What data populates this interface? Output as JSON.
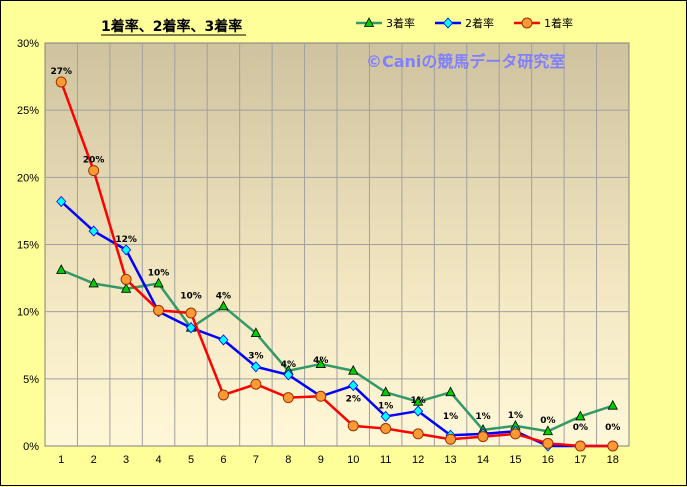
{
  "chart_data": {
    "type": "line",
    "title": "1着率、2着率、3着率",
    "watermark": "©Caniの競馬データ研究室",
    "x": [
      1,
      2,
      3,
      4,
      5,
      6,
      7,
      8,
      9,
      10,
      11,
      12,
      13,
      14,
      15,
      16,
      17,
      18
    ],
    "ylim": [
      0,
      30
    ],
    "yticks": [
      "0%",
      "5%",
      "10%",
      "15%",
      "20%",
      "25%",
      "30%"
    ],
    "legend_position": "top-right",
    "series": [
      {
        "name": "3着率",
        "color": "#339966",
        "marker": "triangle",
        "marker_fill": "#00cc00",
        "values": [
          13.1,
          12.1,
          11.7,
          12.1,
          8.8,
          10.4,
          8.4,
          5.6,
          6.1,
          5.6,
          4.0,
          3.3,
          4.0,
          1.2,
          1.5,
          1.1,
          2.2,
          3.0
        ]
      },
      {
        "name": "2着率",
        "color": "#0000ff",
        "marker": "diamond",
        "marker_fill": "#00ffff",
        "values": [
          18.2,
          16.0,
          14.6,
          10.0,
          8.8,
          7.9,
          5.9,
          5.3,
          3.7,
          4.5,
          2.2,
          2.6,
          0.8,
          0.9,
          1.1,
          0.0,
          0.0,
          0.0
        ]
      },
      {
        "name": "1着率",
        "color": "#ff0000",
        "marker": "circle",
        "marker_fill": "#ff9933",
        "values": [
          27.1,
          20.5,
          12.4,
          10.1,
          9.9,
          3.8,
          4.6,
          3.6,
          3.7,
          1.5,
          1.3,
          0.9,
          0.5,
          0.7,
          0.9,
          0.2,
          0.0,
          0.0
        ]
      }
    ],
    "data_labels": [
      "27%",
      "20%",
      "12%",
      "10%",
      "10%",
      "4%",
      "3%",
      "4%",
      "4%",
      "2%",
      "1%",
      "1%",
      "1%",
      "1%",
      "1%",
      "0%",
      "0%",
      "0%"
    ],
    "data_label_values": [
      27.1,
      20.5,
      14.6,
      12.1,
      10.4,
      10.4,
      5.9,
      5.3,
      5.6,
      2.7,
      2.2,
      2.6,
      1.4,
      1.4,
      1.5,
      1.1,
      0.6,
      0.6
    ]
  }
}
